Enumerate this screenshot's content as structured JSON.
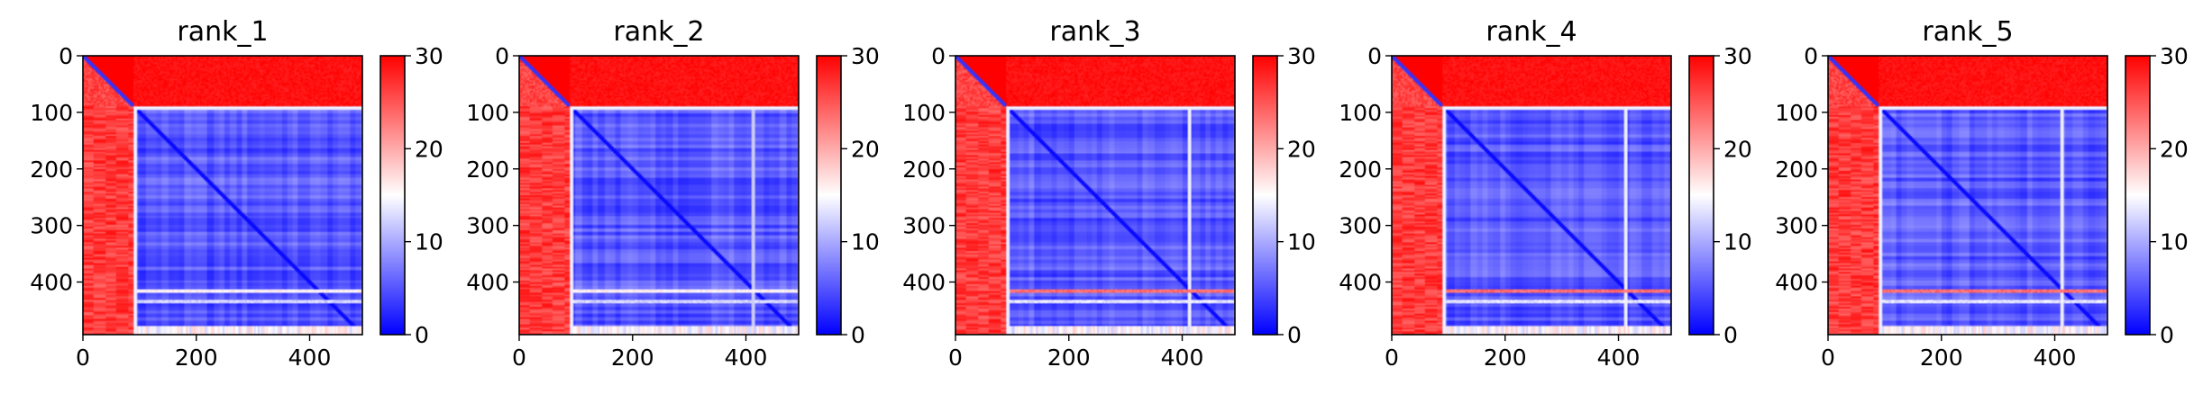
{
  "chart_data": {
    "type": "heatmap",
    "colormap": "bwr",
    "colors": {
      "low": "#0000ff",
      "mid": "#ffffff",
      "high": "#ff0000"
    },
    "color_range": [
      0,
      30
    ],
    "colorbar_ticks": [
      0,
      10,
      20,
      30
    ],
    "x_ticks": [
      0,
      200,
      400
    ],
    "y_ticks": [
      0,
      100,
      200,
      300,
      400
    ],
    "matrix_size": 493,
    "panels": [
      {
        "title": "rank_1",
        "structure": {
          "low_block": [
            90,
            493
          ],
          "off_block_value": 28,
          "diag_segment_value": 3,
          "bright_rows": [
            {
              "range": [
                412,
                418
              ],
              "value": 14
            },
            {
              "range": [
                430,
                436
              ],
              "value": 11
            }
          ],
          "bright_cols": []
        }
      },
      {
        "title": "rank_2",
        "structure": {
          "low_block": [
            90,
            493
          ],
          "off_block_value": 28,
          "diag_segment_value": 3,
          "bright_rows": [
            {
              "range": [
                412,
                418
              ],
              "value": 14
            },
            {
              "range": [
                430,
                436
              ],
              "value": 11
            }
          ],
          "bright_cols": [
            {
              "range": [
                410,
                416
              ],
              "value": 12
            }
          ]
        }
      },
      {
        "title": "rank_3",
        "structure": {
          "low_block": [
            90,
            493
          ],
          "off_block_value": 28,
          "diag_segment_value": 3,
          "bright_rows": [
            {
              "range": [
                412,
                418
              ],
              "value": 22
            },
            {
              "range": [
                430,
                436
              ],
              "value": 12
            }
          ],
          "bright_cols": [
            {
              "range": [
                410,
                416
              ],
              "value": 14
            }
          ]
        }
      },
      {
        "title": "rank_4",
        "structure": {
          "low_block": [
            90,
            493
          ],
          "off_block_value": 28,
          "diag_segment_value": 3,
          "bright_rows": [
            {
              "range": [
                412,
                418
              ],
              "value": 22
            },
            {
              "range": [
                430,
                436
              ],
              "value": 12
            }
          ],
          "bright_cols": [
            {
              "range": [
                410,
                416
              ],
              "value": 14
            }
          ]
        }
      },
      {
        "title": "rank_5",
        "structure": {
          "low_block": [
            90,
            493
          ],
          "off_block_value": 28,
          "diag_segment_value": 3,
          "bright_rows": [
            {
              "range": [
                412,
                418
              ],
              "value": 22
            },
            {
              "range": [
                430,
                436
              ],
              "value": 12
            }
          ],
          "bright_cols": [
            {
              "range": [
                410,
                416
              ],
              "value": 14
            }
          ]
        }
      }
    ]
  }
}
